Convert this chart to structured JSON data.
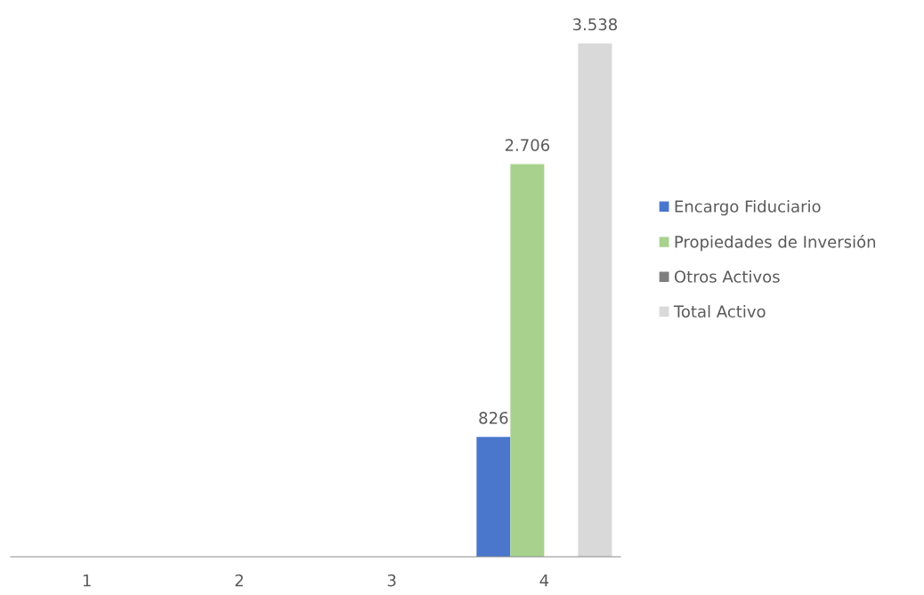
{
  "chart_data": {
    "type": "bar",
    "categories": [
      "1",
      "2",
      "3",
      "4"
    ],
    "series": [
      {
        "name": "Encargo Fiduciario",
        "color": "#4a76cc",
        "values": [
          null,
          null,
          null,
          826
        ],
        "value_labels": [
          null,
          null,
          null,
          "826"
        ]
      },
      {
        "name": "Propiedades de Inversión",
        "color": "#a9d18e",
        "values": [
          null,
          null,
          null,
          2706
        ],
        "value_labels": [
          null,
          null,
          null,
          "2.706"
        ]
      },
      {
        "name": "Otros Activos",
        "color": "#7f7f7f",
        "values": [
          null,
          null,
          null,
          null
        ],
        "value_labels": [
          null,
          null,
          null,
          null
        ]
      },
      {
        "name": "Total Activo",
        "color": "#d9d9d9",
        "values": [
          null,
          null,
          null,
          3538
        ],
        "value_labels": [
          null,
          null,
          null,
          "3.538"
        ]
      }
    ],
    "tick_labels": "x",
    "grid": false,
    "legend": "right"
  }
}
